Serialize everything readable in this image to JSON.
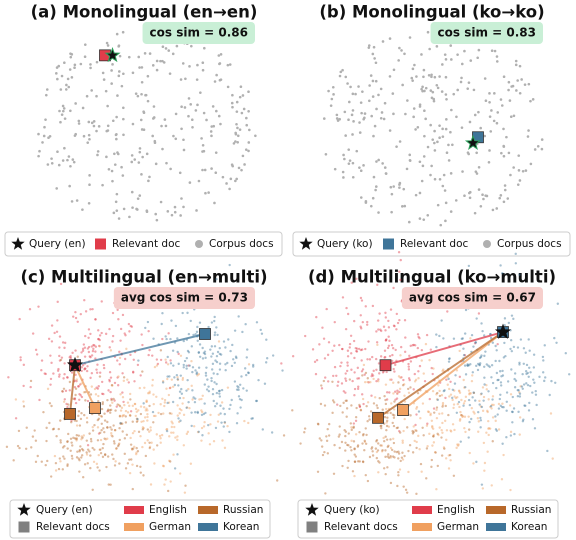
{
  "chart_data": [
    {
      "type": "scatter",
      "title": "(a) Monolingual (en→en)",
      "annotation": "cos sim = 0.86",
      "annotation_color": "#c9efd6",
      "query": {
        "name": "Query (en)",
        "color": "#111111",
        "edge_color": "#2ca05a",
        "x": 0.37,
        "y": 0.87
      },
      "docs": {
        "name": "Relevant doc",
        "x": [
          0.34
        ],
        "y": [
          0.87
        ],
        "colors": [
          "#e03c4a"
        ]
      },
      "corpus": {
        "name": "Corpus docs",
        "color": "#b0b0b0"
      }
    },
    {
      "type": "scatter",
      "title": "(b) Monolingual (ko→ko)",
      "annotation": "cos sim = 0.83",
      "annotation_color": "#c9efd6",
      "query": {
        "name": "Query (ko)",
        "color": "#111111",
        "edge_color": "#2ca05a",
        "x": 0.66,
        "y": 0.42
      },
      "docs": {
        "name": "Relevant doc",
        "x": [
          0.68
        ],
        "y": [
          0.45
        ],
        "colors": [
          "#3f7599"
        ]
      },
      "corpus": {
        "name": "Corpus docs",
        "color": "#b0b0b0"
      }
    },
    {
      "type": "scatter",
      "title": "(c) Multilingual (en→multi)",
      "annotation": "avg cos sim = 0.73",
      "annotation_color": "#f6cfcc",
      "query": {
        "name": "Query (en)",
        "color": "#111111",
        "edge_color": "#111111",
        "x": 0.22,
        "y": 0.64
      },
      "docs": {
        "name": "Relevant docs",
        "color": "#808080",
        "x": [
          0.22,
          0.3,
          0.2,
          0.74
        ],
        "y": [
          0.64,
          0.42,
          0.39,
          0.8
        ],
        "colors": [
          "#e03c4a",
          "#f0a060",
          "#b8682a",
          "#3f7599"
        ]
      },
      "languages": [
        {
          "name": "English",
          "color": "#e03c4a"
        },
        {
          "name": "German",
          "color": "#f0a060"
        },
        {
          "name": "Russian",
          "color": "#b8682a"
        },
        {
          "name": "Korean",
          "color": "#3f7599"
        }
      ]
    },
    {
      "type": "scatter",
      "title": "(d) Multilingual (ko→multi)",
      "annotation": "avg cos sim = 0.67",
      "annotation_color": "#f6cfcc",
      "query": {
        "name": "Query (ko)",
        "color": "#111111",
        "edge_color": "#111111",
        "x": 0.78,
        "y": 0.81
      },
      "docs": {
        "name": "Relevant docs",
        "color": "#808080",
        "x": [
          0.31,
          0.38,
          0.28,
          0.78
        ],
        "y": [
          0.64,
          0.41,
          0.37,
          0.81
        ],
        "colors": [
          "#e03c4a",
          "#f0a060",
          "#b8682a",
          "#3f7599"
        ]
      },
      "languages": [
        {
          "name": "English",
          "color": "#e03c4a"
        },
        {
          "name": "German",
          "color": "#f0a060"
        },
        {
          "name": "Russian",
          "color": "#b8682a"
        },
        {
          "name": "Korean",
          "color": "#3f7599"
        }
      ]
    }
  ]
}
